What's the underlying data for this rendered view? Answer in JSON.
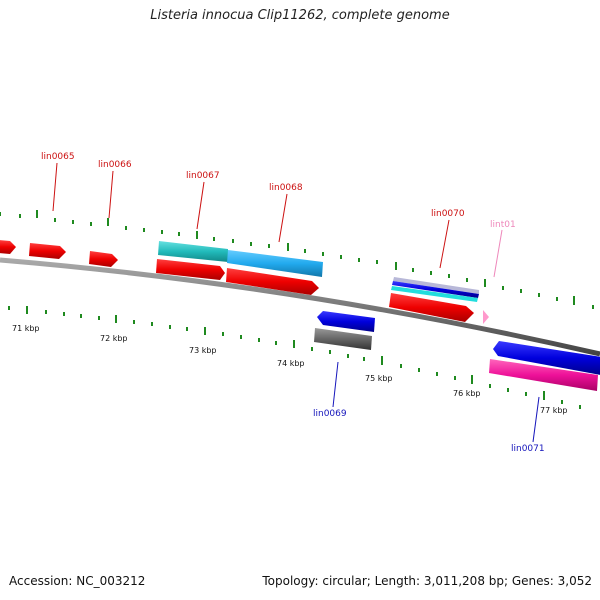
{
  "title": "Listeria innocua Clip11262, complete genome",
  "footer": {
    "accession": "Accession: NC_003212",
    "summary": "Topology: circular; Length: 3,011,208 bp; Genes: 3,052"
  },
  "colors": {
    "backbone": "#7a7a7a",
    "tick": "#1f8a1f",
    "forward_label": "#cc1111",
    "reverse_label": "#1515bb",
    "rna_label": "#ee88bb"
  },
  "kbp_labels": [
    "71 kbp",
    "72 kbp",
    "73 kbp",
    "74 kbp",
    "75 kbp",
    "76 kbp",
    "77 kbp"
  ],
  "gene_labels": [
    {
      "text": "lin0065",
      "strand": "forward"
    },
    {
      "text": "lin0066",
      "strand": "forward"
    },
    {
      "text": "lin0067",
      "strand": "forward"
    },
    {
      "text": "lin0068",
      "strand": "forward"
    },
    {
      "text": "lin0070",
      "strand": "forward"
    },
    {
      "text": "lint01",
      "strand": "rna"
    },
    {
      "text": "lin0069",
      "strand": "reverse"
    },
    {
      "text": "lin0071",
      "strand": "reverse"
    }
  ]
}
